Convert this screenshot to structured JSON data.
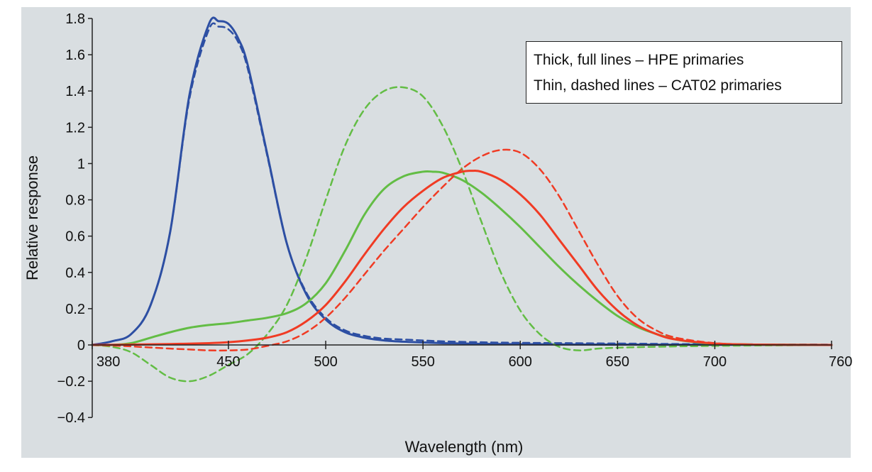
{
  "chart_data": {
    "type": "line",
    "xlabel": "Wavelength (nm)",
    "ylabel": "Relative response",
    "xlim": [
      380,
      760
    ],
    "ylim": [
      -0.4,
      1.8
    ],
    "xticks": [
      "380",
      "450",
      "500",
      "550",
      "600",
      "650",
      "700",
      "760"
    ],
    "yticks": [
      "1.8",
      "1.6",
      "1.4",
      "1.2",
      "1",
      "0.8",
      "0.6",
      "0.4",
      "0.2",
      "0",
      "−0.2",
      "−0.4"
    ],
    "legend_lines": [
      "Thick, full lines – HPE primaries",
      "Thin, dashed lines – CAT02 primaries"
    ],
    "legend_position": "top-right",
    "grid": false,
    "background": "#d9dee1",
    "x_tick_values": [
      380,
      450,
      500,
      550,
      600,
      650,
      700,
      760
    ],
    "y_tick_values": [
      1.8,
      1.6,
      1.4,
      1.2,
      1.0,
      0.8,
      0.6,
      0.4,
      0.2,
      0.0,
      -0.2,
      -0.4
    ],
    "series": [
      {
        "color": "#2d4fa3",
        "style": "solid",
        "x": [
          380,
          390,
          400,
          410,
          420,
          430,
          440,
          445,
          450,
          455,
          460,
          470,
          480,
          490,
          500,
          510,
          520,
          530,
          540,
          550,
          560,
          580,
          600,
          650,
          700,
          760
        ],
        "y": [
          0.0,
          0.02,
          0.06,
          0.22,
          0.62,
          1.38,
          1.77,
          1.785,
          1.77,
          1.69,
          1.54,
          1.05,
          0.56,
          0.28,
          0.14,
          0.07,
          0.04,
          0.025,
          0.018,
          0.014,
          0.01,
          0.006,
          0.004,
          0.002,
          0.001,
          0.0
        ]
      },
      {
        "color": "#2d4fa3",
        "style": "dashed",
        "x": [
          380,
          390,
          400,
          410,
          420,
          430,
          440,
          445,
          450,
          455,
          460,
          470,
          480,
          490,
          500,
          510,
          520,
          530,
          540,
          550,
          560,
          580,
          600,
          650,
          700,
          760
        ],
        "y": [
          0.0,
          0.02,
          0.06,
          0.22,
          0.62,
          1.36,
          1.74,
          1.755,
          1.74,
          1.67,
          1.52,
          1.04,
          0.56,
          0.29,
          0.15,
          0.08,
          0.05,
          0.035,
          0.03,
          0.025,
          0.02,
          0.015,
          0.012,
          0.008,
          0.004,
          0.002
        ]
      },
      {
        "color": "#63bd45",
        "style": "solid",
        "x": [
          380,
          390,
          400,
          410,
          420,
          430,
          440,
          450,
          460,
          470,
          480,
          490,
          500,
          510,
          520,
          530,
          540,
          550,
          555,
          560,
          570,
          580,
          590,
          600,
          610,
          620,
          630,
          640,
          650,
          660,
          670,
          680,
          690,
          700,
          720,
          760
        ],
        "y": [
          0.0,
          0.0,
          0.01,
          0.04,
          0.07,
          0.095,
          0.11,
          0.12,
          0.135,
          0.15,
          0.175,
          0.23,
          0.34,
          0.52,
          0.72,
          0.86,
          0.93,
          0.955,
          0.955,
          0.95,
          0.91,
          0.84,
          0.75,
          0.65,
          0.54,
          0.43,
          0.33,
          0.24,
          0.16,
          0.1,
          0.06,
          0.03,
          0.015,
          0.007,
          0.002,
          0.0
        ]
      },
      {
        "color": "#63bd45",
        "style": "dashed",
        "x": [
          380,
          390,
          400,
          410,
          420,
          430,
          440,
          450,
          460,
          470,
          480,
          490,
          500,
          510,
          520,
          530,
          540,
          550,
          560,
          570,
          580,
          590,
          600,
          610,
          620,
          630,
          640,
          650,
          670,
          700,
          760
        ],
        "y": [
          0.0,
          -0.01,
          -0.04,
          -0.11,
          -0.18,
          -0.2,
          -0.17,
          -0.11,
          -0.05,
          0.06,
          0.22,
          0.48,
          0.8,
          1.1,
          1.3,
          1.4,
          1.42,
          1.37,
          1.21,
          0.97,
          0.68,
          0.4,
          0.19,
          0.06,
          -0.01,
          -0.03,
          -0.02,
          -0.015,
          -0.01,
          -0.005,
          0.0
        ]
      },
      {
        "color": "#f03b24",
        "style": "solid",
        "x": [
          380,
          400,
          420,
          440,
          450,
          460,
          470,
          480,
          490,
          500,
          510,
          520,
          530,
          540,
          550,
          560,
          570,
          575,
          580,
          590,
          600,
          610,
          620,
          630,
          640,
          650,
          660,
          670,
          680,
          700,
          720,
          760
        ],
        "y": [
          0.0,
          0.002,
          0.005,
          0.01,
          0.015,
          0.025,
          0.04,
          0.07,
          0.13,
          0.22,
          0.35,
          0.5,
          0.64,
          0.76,
          0.85,
          0.92,
          0.955,
          0.96,
          0.955,
          0.91,
          0.83,
          0.72,
          0.58,
          0.44,
          0.3,
          0.19,
          0.11,
          0.06,
          0.03,
          0.008,
          0.002,
          0.0
        ]
      },
      {
        "color": "#f03b24",
        "style": "dashed",
        "x": [
          380,
          390,
          400,
          410,
          420,
          430,
          440,
          450,
          460,
          470,
          480,
          490,
          500,
          510,
          520,
          530,
          540,
          550,
          560,
          570,
          580,
          590,
          600,
          610,
          620,
          630,
          640,
          650,
          660,
          670,
          680,
          700,
          720,
          760
        ],
        "y": [
          0.0,
          -0.003,
          -0.008,
          -0.014,
          -0.02,
          -0.025,
          -0.03,
          -0.03,
          -0.025,
          -0.005,
          0.02,
          0.07,
          0.15,
          0.26,
          0.39,
          0.52,
          0.64,
          0.76,
          0.87,
          0.97,
          1.04,
          1.075,
          1.06,
          0.97,
          0.82,
          0.63,
          0.44,
          0.27,
          0.15,
          0.08,
          0.04,
          0.01,
          0.003,
          0.0
        ]
      }
    ]
  }
}
